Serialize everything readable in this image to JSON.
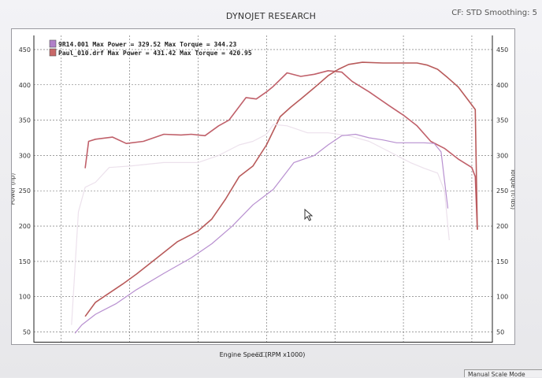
{
  "window": {
    "title": "DYNOJET RESEARCH",
    "status": "CF: STD  Smoothing: 5",
    "mode": "Manual Scale Mode"
  },
  "chart_data": {
    "type": "line",
    "xlabel": "Engine Speed (RPM x1000)",
    "ylabel_left": "Power (hp)",
    "ylabel_right": "Torque (ft-lbs)",
    "xlim": [
      0.6,
      7.3
    ],
    "ylim": [
      35,
      470
    ],
    "x_ticks": [
      1,
      2,
      3,
      4,
      5,
      6,
      7
    ],
    "y_ticks": [
      50,
      100,
      150,
      200,
      250,
      300,
      350,
      400,
      450
    ],
    "grid": true,
    "legend_position": "top-left",
    "legend": [
      {
        "label": "9R14.001 Max Power = 329.52 Max Torque = 344.23",
        "color": "#b080c8"
      },
      {
        "label": "Paul_010.drf Max Power = 431.42 Max Torque = 420.95",
        "color": "#c86868"
      }
    ],
    "series": [
      {
        "name": "Paul_010.drf Torque",
        "color": "#c0606a",
        "x": [
          1.35,
          1.4,
          1.5,
          1.75,
          1.95,
          2.2,
          2.5,
          2.75,
          2.9,
          3.1,
          3.3,
          3.45,
          3.7,
          3.85,
          4.0,
          4.1,
          4.3,
          4.5,
          4.7,
          4.9,
          5.1,
          5.25,
          5.5,
          5.8,
          6.0,
          6.2,
          6.4,
          6.6,
          6.8,
          7.0,
          7.05,
          7.08
        ],
        "y": [
          282,
          320,
          323,
          326,
          317,
          320,
          330,
          329,
          330,
          328,
          342,
          350,
          382,
          380,
          390,
          398,
          417,
          412,
          415,
          420,
          418,
          405,
          390,
          370,
          357,
          342,
          320,
          310,
          295,
          283,
          270,
          195
        ]
      },
      {
        "name": "Paul_010.drf Power",
        "color": "#b85a5a",
        "x": [
          1.35,
          1.5,
          1.7,
          1.9,
          2.1,
          2.4,
          2.7,
          3.0,
          3.2,
          3.4,
          3.6,
          3.8,
          4.0,
          4.2,
          4.35,
          4.5,
          4.7,
          4.9,
          5.05,
          5.2,
          5.4,
          5.7,
          6.0,
          6.2,
          6.35,
          6.5,
          6.65,
          6.8,
          6.95,
          7.05,
          7.08
        ],
        "y": [
          72,
          92,
          105,
          118,
          132,
          155,
          178,
          193,
          210,
          238,
          270,
          285,
          315,
          355,
          368,
          380,
          396,
          413,
          422,
          429,
          432,
          431,
          431,
          431,
          428,
          422,
          410,
          397,
          378,
          365,
          195
        ]
      },
      {
        "name": "9R14.001 Torque",
        "color": "#ece1ec",
        "x": [
          1.15,
          1.25,
          1.35,
          1.5,
          1.7,
          2.0,
          2.5,
          3.0,
          3.3,
          3.6,
          3.8,
          4.0,
          4.1,
          4.3,
          4.6,
          4.9,
          5.2,
          5.5,
          5.8,
          6.1,
          6.3,
          6.5,
          6.6,
          6.67
        ],
        "y": [
          60,
          220,
          255,
          262,
          283,
          285,
          290,
          290,
          300,
          315,
          320,
          330,
          344,
          342,
          332,
          332,
          328,
          320,
          305,
          290,
          282,
          275,
          250,
          180
        ]
      },
      {
        "name": "9R14.001 Power",
        "color": "#b890d0",
        "x": [
          1.2,
          1.3,
          1.5,
          1.8,
          2.1,
          2.5,
          2.9,
          3.2,
          3.5,
          3.8,
          4.1,
          4.4,
          4.7,
          4.9,
          5.1,
          5.3,
          5.5,
          5.7,
          5.9,
          6.1,
          6.3,
          6.45,
          6.55,
          6.65
        ],
        "y": [
          48,
          60,
          75,
          90,
          110,
          133,
          155,
          175,
          200,
          230,
          252,
          290,
          300,
          315,
          328,
          330,
          325,
          322,
          318,
          318,
          318,
          317,
          305,
          225
        ]
      }
    ]
  }
}
